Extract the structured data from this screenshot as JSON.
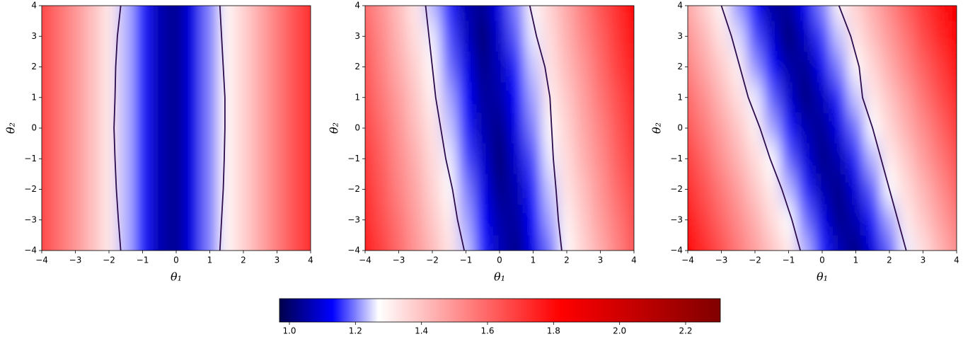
{
  "chart_data": [
    {
      "type": "heatmap",
      "xlabel": "θ₁",
      "ylabel": "θ₂",
      "contour_color": "#2c0c4c",
      "xlim": [
        -4,
        4
      ],
      "ylim": [
        -4,
        4
      ],
      "xticks": [
        {
          "value": -4,
          "label": "−4"
        },
        {
          "value": -3,
          "label": "−3"
        },
        {
          "value": -2,
          "label": "−2"
        },
        {
          "value": -1,
          "label": "−1"
        },
        0,
        1,
        2,
        3,
        4
      ],
      "yticks": [
        {
          "value": -4,
          "label": "−4"
        },
        {
          "value": -3,
          "label": "−3"
        },
        {
          "value": -2,
          "label": "−2"
        },
        {
          "value": -1,
          "label": "−1"
        },
        0,
        1,
        2,
        3,
        4
      ],
      "x": [
        -4,
        -3.5,
        -3,
        -2.5,
        -2,
        -1.5,
        -1,
        -0.5,
        0,
        0.5,
        1,
        1.5,
        2,
        2.5,
        3,
        3.5,
        4
      ],
      "y": [
        4,
        3,
        2,
        1,
        0,
        -1,
        -2,
        -3,
        -4
      ],
      "z": [
        [
          1.67,
          1.58,
          1.5,
          1.41,
          1.32,
          1.23,
          1.15,
          1.06,
          1.03,
          1.11,
          1.2,
          1.29,
          1.37,
          1.46,
          1.55,
          1.64,
          1.72
        ],
        [
          1.67,
          1.58,
          1.5,
          1.41,
          1.32,
          1.23,
          1.15,
          1.06,
          1.03,
          1.11,
          1.2,
          1.29,
          1.37,
          1.46,
          1.55,
          1.64,
          1.72
        ],
        [
          1.67,
          1.58,
          1.5,
          1.41,
          1.32,
          1.23,
          1.15,
          1.06,
          1.03,
          1.11,
          1.2,
          1.29,
          1.37,
          1.46,
          1.55,
          1.64,
          1.72
        ],
        [
          1.67,
          1.58,
          1.5,
          1.41,
          1.32,
          1.23,
          1.15,
          1.06,
          1.03,
          1.11,
          1.2,
          1.29,
          1.37,
          1.46,
          1.55,
          1.64,
          1.72
        ],
        [
          1.67,
          1.58,
          1.5,
          1.41,
          1.32,
          1.23,
          1.15,
          1.06,
          1.03,
          1.11,
          1.2,
          1.29,
          1.37,
          1.46,
          1.55,
          1.64,
          1.72
        ],
        [
          1.67,
          1.58,
          1.5,
          1.41,
          1.32,
          1.23,
          1.15,
          1.06,
          1.03,
          1.11,
          1.2,
          1.29,
          1.37,
          1.46,
          1.55,
          1.64,
          1.72
        ],
        [
          1.67,
          1.58,
          1.5,
          1.41,
          1.32,
          1.23,
          1.15,
          1.06,
          1.03,
          1.11,
          1.2,
          1.29,
          1.37,
          1.46,
          1.55,
          1.64,
          1.72
        ],
        [
          1.67,
          1.58,
          1.5,
          1.41,
          1.32,
          1.23,
          1.15,
          1.06,
          1.03,
          1.11,
          1.2,
          1.29,
          1.37,
          1.46,
          1.55,
          1.64,
          1.72
        ],
        [
          1.67,
          1.58,
          1.5,
          1.41,
          1.32,
          1.23,
          1.15,
          1.06,
          1.03,
          1.11,
          1.2,
          1.29,
          1.37,
          1.46,
          1.55,
          1.64,
          1.72
        ]
      ],
      "contours": [
        {
          "x": [
            -1.65,
            -1.75,
            -1.8,
            -1.82,
            -1.85,
            -1.82,
            -1.78,
            -1.72,
            -1.65
          ],
          "y": [
            4,
            3,
            2,
            1,
            0,
            -1,
            -2,
            -3,
            -4
          ]
        },
        {
          "x": [
            1.3,
            1.35,
            1.4,
            1.45,
            1.45,
            1.43,
            1.4,
            1.35,
            1.3
          ],
          "y": [
            4,
            3,
            2,
            1,
            0,
            -1,
            -2,
            -3,
            -4
          ]
        }
      ]
    },
    {
      "type": "heatmap",
      "xlabel": "θ₁",
      "ylabel": "θ₂",
      "contour_color": "#2c0c4c",
      "xlim": [
        -4,
        4
      ],
      "ylim": [
        -4,
        4
      ],
      "xticks": [
        {
          "value": -4,
          "label": "−4"
        },
        {
          "value": -3,
          "label": "−3"
        },
        {
          "value": -2,
          "label": "−2"
        },
        {
          "value": -1,
          "label": "−1"
        },
        0,
        1,
        2,
        3,
        4
      ],
      "yticks": [
        {
          "value": -4,
          "label": "−4"
        },
        {
          "value": -3,
          "label": "−3"
        },
        {
          "value": -2,
          "label": "−2"
        },
        {
          "value": -1,
          "label": "−1"
        },
        0,
        1,
        2,
        3,
        4
      ],
      "x": [
        -4,
        -3.5,
        -3,
        -2.5,
        -2,
        -1.5,
        -1,
        -0.5,
        0,
        0.5,
        1,
        1.5,
        2,
        2.5,
        3,
        3.5,
        4
      ],
      "y": [
        4,
        3,
        2,
        1,
        0,
        -1,
        -2,
        -3,
        -4
      ],
      "z": [
        [
          1.58,
          1.5,
          1.41,
          1.32,
          1.23,
          1.15,
          1.06,
          1.03,
          1.11,
          1.2,
          1.29,
          1.37,
          1.46,
          1.55,
          1.64,
          1.72,
          1.81
        ],
        [
          1.61,
          1.52,
          1.43,
          1.34,
          1.26,
          1.17,
          1.08,
          1.0,
          1.09,
          1.18,
          1.26,
          1.35,
          1.44,
          1.53,
          1.61,
          1.7,
          1.79
        ],
        [
          1.63,
          1.54,
          1.45,
          1.37,
          1.28,
          1.19,
          1.11,
          1.02,
          1.07,
          1.15,
          1.24,
          1.33,
          1.42,
          1.5,
          1.59,
          1.68,
          1.76
        ],
        [
          1.65,
          1.56,
          1.48,
          1.39,
          1.3,
          1.22,
          1.13,
          1.04,
          1.05,
          1.13,
          1.22,
          1.31,
          1.39,
          1.48,
          1.57,
          1.65,
          1.74
        ],
        [
          1.67,
          1.59,
          1.5,
          1.41,
          1.33,
          1.24,
          1.15,
          1.06,
          1.02,
          1.11,
          1.2,
          1.28,
          1.37,
          1.46,
          1.54,
          1.63,
          1.72
        ],
        [
          1.7,
          1.61,
          1.52,
          1.44,
          1.35,
          1.26,
          1.17,
          1.09,
          1.0,
          1.09,
          1.17,
          1.26,
          1.35,
          1.44,
          1.52,
          1.61,
          1.7
        ],
        [
          1.72,
          1.63,
          1.54,
          1.46,
          1.37,
          1.28,
          1.2,
          1.11,
          1.02,
          1.06,
          1.15,
          1.24,
          1.33,
          1.41,
          1.5,
          1.59,
          1.67
        ],
        [
          1.74,
          1.65,
          1.57,
          1.48,
          1.39,
          1.31,
          1.22,
          1.13,
          1.05,
          1.04,
          1.13,
          1.22,
          1.3,
          1.39,
          1.48,
          1.56,
          1.65
        ],
        [
          1.76,
          1.68,
          1.59,
          1.5,
          1.42,
          1.33,
          1.24,
          1.15,
          1.07,
          1.02,
          1.11,
          1.19,
          1.28,
          1.37,
          1.45,
          1.54,
          1.63
        ]
      ],
      "contours": [
        {
          "x": [
            -2.2,
            -2.1,
            -2.0,
            -1.9,
            -1.75,
            -1.6,
            -1.4,
            -1.25,
            -1.05
          ],
          "y": [
            4,
            3,
            2,
            1,
            0,
            -1,
            -2,
            -3,
            -4
          ]
        },
        {
          "x": [
            0.9,
            1.1,
            1.35,
            1.5,
            1.55,
            1.6,
            1.68,
            1.75,
            1.85
          ],
          "y": [
            4,
            3,
            2,
            1,
            0,
            -1,
            -2,
            -3,
            -4
          ]
        }
      ]
    },
    {
      "type": "heatmap",
      "xlabel": "θ₁",
      "ylabel": "θ₂",
      "contour_color": "#2c0c4c",
      "xlim": [
        -4,
        4
      ],
      "ylim": [
        -4,
        4
      ],
      "xticks": [
        {
          "value": -4,
          "label": "−4"
        },
        {
          "value": -3,
          "label": "−3"
        },
        {
          "value": -2,
          "label": "−2"
        },
        {
          "value": -1,
          "label": "−1"
        },
        0,
        1,
        2,
        3,
        4
      ],
      "yticks": [
        {
          "value": -4,
          "label": "−4"
        },
        {
          "value": -3,
          "label": "−3"
        },
        {
          "value": -2,
          "label": "−2"
        },
        {
          "value": -1,
          "label": "−1"
        },
        0,
        1,
        2,
        3,
        4
      ],
      "x": [
        -4,
        -3.5,
        -3,
        -2.5,
        -2,
        -1.5,
        -1,
        -0.5,
        0,
        0.5,
        1,
        1.5,
        2,
        2.5,
        3,
        3.5,
        4
      ],
      "y": [
        4,
        3,
        2,
        1,
        0,
        -1,
        -2,
        -3,
        -4
      ],
      "z": [
        [
          1.46,
          1.37,
          1.29,
          1.21,
          1.13,
          1.04,
          1.04,
          1.12,
          1.2,
          1.29,
          1.37,
          1.45,
          1.53,
          1.62,
          1.7,
          1.78,
          1.86
        ],
        [
          1.5,
          1.42,
          1.33,
          1.25,
          1.17,
          1.09,
          1.0,
          1.08,
          1.16,
          1.24,
          1.33,
          1.41,
          1.49,
          1.57,
          1.66,
          1.74,
          1.82
        ],
        [
          1.54,
          1.46,
          1.38,
          1.3,
          1.21,
          1.13,
          1.05,
          1.03,
          1.12,
          1.2,
          1.28,
          1.36,
          1.45,
          1.53,
          1.61,
          1.69,
          1.78
        ],
        [
          1.59,
          1.51,
          1.42,
          1.34,
          1.26,
          1.18,
          1.09,
          1.01,
          1.07,
          1.15,
          1.24,
          1.32,
          1.4,
          1.48,
          1.57,
          1.65,
          1.73
        ],
        [
          1.63,
          1.55,
          1.47,
          1.39,
          1.3,
          1.22,
          1.14,
          1.06,
          1.03,
          1.11,
          1.19,
          1.27,
          1.36,
          1.44,
          1.52,
          1.6,
          1.69
        ],
        [
          1.68,
          1.6,
          1.51,
          1.43,
          1.35,
          1.27,
          1.18,
          1.1,
          1.02,
          1.06,
          1.15,
          1.23,
          1.31,
          1.39,
          1.48,
          1.56,
          1.64
        ],
        [
          1.72,
          1.64,
          1.56,
          1.48,
          1.39,
          1.31,
          1.23,
          1.15,
          1.06,
          1.02,
          1.1,
          1.18,
          1.27,
          1.35,
          1.43,
          1.51,
          1.6
        ],
        [
          1.77,
          1.68,
          1.6,
          1.52,
          1.44,
          1.35,
          1.27,
          1.19,
          1.11,
          1.02,
          1.06,
          1.14,
          1.22,
          1.31,
          1.39,
          1.47,
          1.55
        ],
        [
          1.81,
          1.73,
          1.65,
          1.56,
          1.48,
          1.4,
          1.32,
          1.23,
          1.15,
          1.07,
          1.01,
          1.1,
          1.18,
          1.26,
          1.34,
          1.43,
          1.51
        ]
      ],
      "contours": [
        {
          "x": [
            -3.0,
            -2.7,
            -2.45,
            -2.2,
            -1.85,
            -1.55,
            -1.2,
            -0.9,
            -0.65
          ],
          "y": [
            4,
            3,
            2,
            1,
            0,
            -1,
            -2,
            -3,
            -4
          ]
        },
        {
          "x": [
            0.5,
            0.85,
            1.1,
            1.2,
            1.5,
            1.75,
            2.0,
            2.25,
            2.5
          ],
          "y": [
            4,
            3,
            2,
            1,
            0,
            -1,
            -2,
            -3,
            -4
          ]
        }
      ]
    },
    {
      "type": "colorbar",
      "xlim": [
        0.97,
        2.305
      ],
      "xticks": [
        {
          "value": 1,
          "label": "1.0"
        },
        1.2,
        1.4,
        1.6,
        1.8,
        {
          "value": 2,
          "label": "2.0"
        },
        2.2
      ],
      "colormap": [
        [
          0.97,
          "#00004c"
        ],
        [
          1.13,
          "#0000ff"
        ],
        [
          1.27,
          "#ffffff"
        ],
        [
          1.82,
          "#ff0000"
        ],
        [
          2.305,
          "#800000"
        ]
      ]
    }
  ]
}
